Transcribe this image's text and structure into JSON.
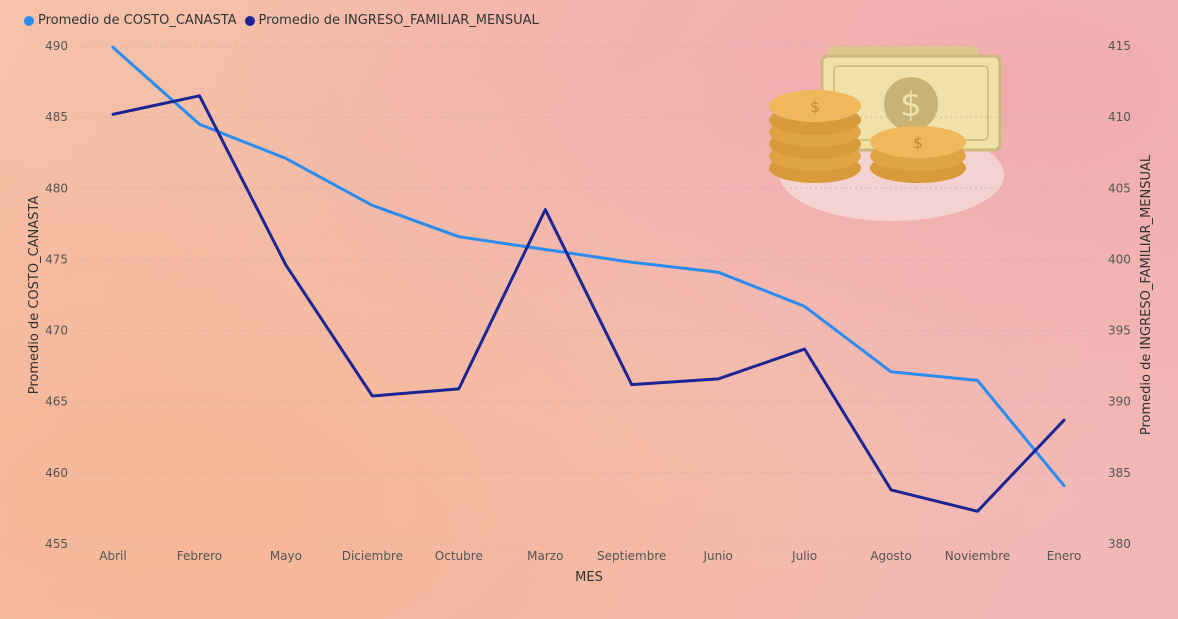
{
  "colors": {
    "series1": "#2b8cf0",
    "series2": "#1c2594"
  },
  "chart_data": {
    "type": "line",
    "x": [
      "Abril",
      "Febrero",
      "Mayo",
      "Diciembre",
      "Octubre",
      "Marzo",
      "Septiembre",
      "Junio",
      "Julio",
      "Agosto",
      "Noviembre",
      "Enero"
    ],
    "xlabel": "MES",
    "ylabel": "Promedio de COSTO_CANASTA",
    "y2label": "Promedio de INGRESO_FAMILIAR_MENSUAL",
    "ylim": [
      455,
      490
    ],
    "y2lim": [
      380,
      415
    ],
    "yticks": [
      "455",
      "460",
      "465",
      "470",
      "475",
      "480",
      "485",
      "490"
    ],
    "y2ticks": [
      "380",
      "385",
      "390",
      "395",
      "400",
      "405",
      "410",
      "415"
    ],
    "grid": true,
    "legend_position": "top-left",
    "series": [
      {
        "name": "Promedio de COSTO_CANASTA",
        "axis": "left",
        "values": [
          489.9,
          484.5,
          482.1,
          478.8,
          476.6,
          475.7,
          474.8,
          474.1,
          471.7,
          467.1,
          466.5,
          459.1
        ]
      },
      {
        "name": "Promedio de INGRESO_FAMILIAR_MENSUAL",
        "axis": "right",
        "values": [
          410.2,
          411.5,
          399.6,
          390.4,
          390.9,
          403.5,
          391.2,
          391.6,
          393.7,
          383.8,
          382.3,
          388.7
        ]
      }
    ]
  }
}
